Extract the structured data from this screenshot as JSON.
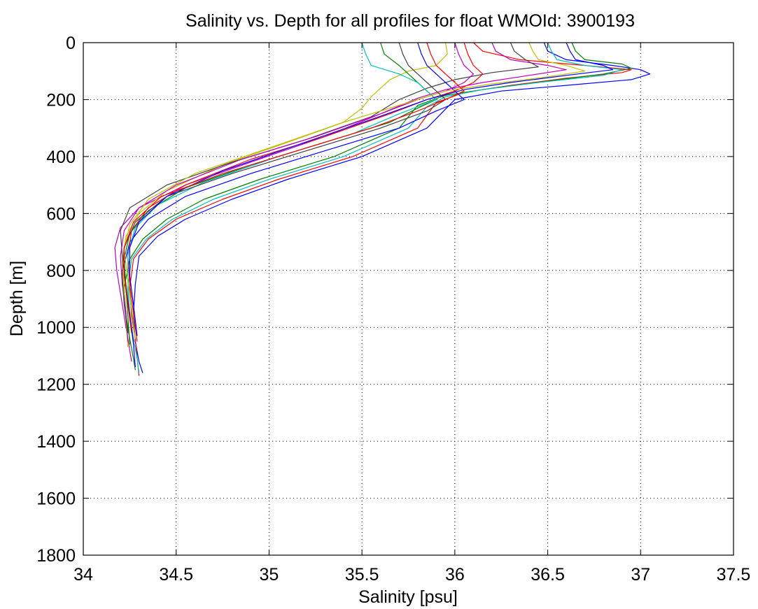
{
  "chart_data": {
    "type": "line",
    "title": "Salinity vs. Depth for all profiles for float WMOId: 3900193",
    "xlabel": "Salinity [psu]",
    "ylabel": "Depth [m]",
    "xlim": [
      34,
      37.5
    ],
    "ylim": [
      0,
      1800
    ],
    "y_reversed": true,
    "grid": true,
    "legend": "none",
    "x_ticks": [
      34,
      34.5,
      35,
      35.5,
      36,
      36.5,
      37,
      37.5
    ],
    "x_tick_labels": [
      "34",
      "34.5",
      "35",
      "35.5",
      "36",
      "36.5",
      "37",
      "37.5"
    ],
    "y_ticks": [
      0,
      200,
      400,
      600,
      800,
      1000,
      1200,
      1400,
      1600,
      1800
    ],
    "y_tick_labels": [
      "0",
      "200",
      "400",
      "600",
      "800",
      "1000",
      "1200",
      "1400",
      "1600",
      "1800"
    ],
    "series_colors": [
      "#0000ff",
      "#ff0000",
      "#008000",
      "#00bfbf",
      "#bf00bf",
      "#bfbf00",
      "#404040"
    ],
    "series": [
      {
        "x": [
          36.48,
          36.5,
          36.6,
          36.85,
          37.0,
          37.05,
          36.95,
          36.6,
          36.25,
          36.0,
          35.85,
          35.5,
          35.1,
          34.8,
          34.55,
          34.4,
          34.3,
          34.28,
          34.27,
          34.28,
          34.3,
          34.32
        ],
        "y": [
          0,
          30,
          60,
          80,
          95,
          110,
          130,
          150,
          170,
          200,
          300,
          400,
          480,
          550,
          620,
          680,
          750,
          850,
          950,
          1050,
          1120,
          1160
        ]
      },
      {
        "x": [
          36.1,
          36.15,
          36.35,
          36.7,
          36.95,
          36.9,
          36.6,
          36.3,
          36.05,
          35.9,
          35.8,
          35.45,
          35.05,
          34.75,
          34.5,
          34.35,
          34.27,
          34.25,
          34.26,
          34.28,
          34.29,
          34.3
        ],
        "y": [
          0,
          30,
          60,
          80,
          95,
          105,
          125,
          150,
          175,
          210,
          300,
          400,
          480,
          550,
          620,
          690,
          760,
          860,
          960,
          1040,
          1110,
          1170
        ]
      },
      {
        "x": [
          36.63,
          36.65,
          36.7,
          36.9,
          36.95,
          36.8,
          36.5,
          36.2,
          35.95,
          35.8,
          35.7,
          35.35,
          34.95,
          34.65,
          34.45,
          34.32,
          34.25,
          34.22,
          34.23,
          34.25,
          34.27,
          34.28
        ],
        "y": [
          0,
          30,
          60,
          75,
          90,
          110,
          135,
          160,
          185,
          220,
          300,
          400,
          480,
          550,
          620,
          690,
          760,
          860,
          960,
          1040,
          1110,
          1150
        ]
      },
      {
        "x": [
          36.5,
          36.52,
          36.55,
          36.7,
          36.9,
          36.8,
          36.45,
          36.15,
          35.95,
          35.85,
          35.75,
          35.4,
          35.0,
          34.7,
          34.48,
          34.34,
          34.26,
          34.24,
          34.25,
          34.27,
          34.29,
          34.3
        ],
        "y": [
          0,
          30,
          60,
          80,
          95,
          115,
          140,
          165,
          190,
          225,
          300,
          400,
          480,
          550,
          620,
          690,
          760,
          860,
          960,
          1040,
          1110,
          1160
        ]
      },
      {
        "x": [
          36.2,
          36.22,
          36.3,
          36.5,
          36.6,
          36.4,
          36.15,
          35.95,
          35.8,
          35.6,
          35.3,
          34.9,
          34.55,
          34.3,
          34.2,
          34.17,
          34.18,
          34.2,
          34.22,
          34.24,
          34.26
        ],
        "y": [
          0,
          30,
          60,
          80,
          95,
          115,
          140,
          165,
          195,
          250,
          330,
          420,
          500,
          580,
          650,
          720,
          800,
          880,
          960,
          1040,
          1120
        ]
      },
      {
        "x": [
          35.95,
          35.96,
          35.9,
          35.75,
          35.65,
          35.6,
          35.55,
          35.5,
          35.4,
          35.1,
          34.75,
          34.45,
          34.3,
          34.23,
          34.21,
          34.22,
          34.23,
          34.24
        ],
        "y": [
          0,
          40,
          80,
          100,
          130,
          160,
          190,
          230,
          280,
          350,
          430,
          520,
          600,
          680,
          770,
          870,
          970,
          1070
        ]
      },
      {
        "x": [
          36.3,
          36.32,
          36.38,
          36.45,
          36.2,
          36.0,
          35.85,
          35.7,
          35.55,
          35.2,
          34.8,
          34.45,
          34.25,
          34.2,
          34.21,
          34.23,
          34.25,
          34.27
        ],
        "y": [
          0,
          30,
          60,
          85,
          105,
          130,
          160,
          200,
          260,
          340,
          420,
          500,
          580,
          660,
          750,
          850,
          950,
          1050
        ]
      },
      {
        "x": [
          35.8,
          35.82,
          35.85,
          35.9,
          35.95,
          36.0,
          36.05,
          35.9,
          35.7,
          35.3,
          34.9,
          34.55,
          34.35,
          34.25,
          34.22,
          34.23,
          34.25,
          34.27,
          34.28
        ],
        "y": [
          0,
          40,
          80,
          110,
          140,
          170,
          200,
          240,
          300,
          380,
          460,
          540,
          620,
          700,
          780,
          870,
          960,
          1060,
          1140
        ]
      },
      {
        "x": [
          36.05,
          36.07,
          36.1,
          36.15,
          36.1,
          36.0,
          35.85,
          35.65,
          35.3,
          34.9,
          34.55,
          34.35,
          34.26,
          34.24,
          34.25,
          34.27,
          34.29
        ],
        "y": [
          0,
          40,
          80,
          110,
          140,
          170,
          200,
          250,
          330,
          410,
          500,
          580,
          660,
          750,
          850,
          950,
          1050
        ]
      },
      {
        "x": [
          35.6,
          35.62,
          35.7,
          35.75,
          35.8,
          35.85,
          35.9,
          35.8,
          35.65,
          35.3,
          34.9,
          34.55,
          34.35,
          34.25,
          34.22,
          34.23,
          34.24,
          34.25
        ],
        "y": [
          0,
          40,
          80,
          110,
          140,
          170,
          200,
          230,
          280,
          350,
          430,
          510,
          590,
          670,
          760,
          860,
          960,
          1060
        ]
      },
      {
        "x": [
          35.5,
          35.52,
          35.55,
          35.7,
          35.8,
          35.85,
          35.9,
          35.7,
          35.45,
          35.05,
          34.65,
          34.4,
          34.28,
          34.24,
          34.24,
          34.26,
          34.28
        ],
        "y": [
          0,
          40,
          80,
          110,
          140,
          170,
          200,
          250,
          320,
          400,
          490,
          570,
          650,
          740,
          840,
          940,
          1040
        ]
      },
      {
        "x": [
          36.0,
          36.02,
          36.05,
          36.1,
          36.05,
          35.95,
          35.8,
          35.6,
          35.25,
          34.85,
          34.5,
          34.3,
          34.22,
          34.2,
          34.21,
          34.23,
          34.24
        ],
        "y": [
          0,
          40,
          80,
          110,
          140,
          170,
          200,
          250,
          330,
          410,
          500,
          580,
          660,
          750,
          850,
          950,
          1050
        ]
      },
      {
        "x": [
          36.4,
          36.42,
          36.45,
          36.6,
          36.7,
          36.5,
          36.2,
          35.95,
          35.75,
          35.4,
          35.0,
          34.6,
          34.35,
          34.25,
          34.22,
          34.24,
          34.26,
          34.28
        ],
        "y": [
          0,
          30,
          60,
          80,
          100,
          120,
          145,
          170,
          210,
          280,
          370,
          460,
          550,
          640,
          730,
          830,
          930,
          1040
        ]
      },
      {
        "x": [
          35.7,
          35.72,
          35.75,
          35.8,
          35.85,
          35.9,
          35.95,
          35.85,
          35.6,
          35.2,
          34.8,
          34.45,
          34.28,
          34.22,
          34.21,
          34.22,
          34.24
        ],
        "y": [
          0,
          40,
          80,
          110,
          140,
          170,
          200,
          240,
          300,
          380,
          460,
          540,
          630,
          720,
          820,
          920,
          1020
        ]
      },
      {
        "x": [
          36.6,
          36.62,
          36.65,
          36.8,
          36.85,
          36.6,
          36.3,
          36.05,
          35.85,
          35.55,
          35.15,
          34.75,
          34.45,
          34.3,
          34.25,
          34.25,
          34.27,
          34.29
        ],
        "y": [
          0,
          30,
          60,
          80,
          95,
          115,
          140,
          165,
          200,
          270,
          360,
          450,
          540,
          630,
          720,
          820,
          920,
          1030
        ]
      },
      {
        "x": [
          35.85,
          35.87,
          35.9,
          35.95,
          36.0,
          36.05,
          35.95,
          35.8,
          35.55,
          35.15,
          34.75,
          34.42,
          34.27,
          34.22,
          34.22,
          34.24,
          34.26
        ],
        "y": [
          0,
          40,
          80,
          110,
          140,
          170,
          200,
          240,
          300,
          380,
          460,
          540,
          630,
          720,
          820,
          920,
          1020
        ]
      }
    ]
  }
}
